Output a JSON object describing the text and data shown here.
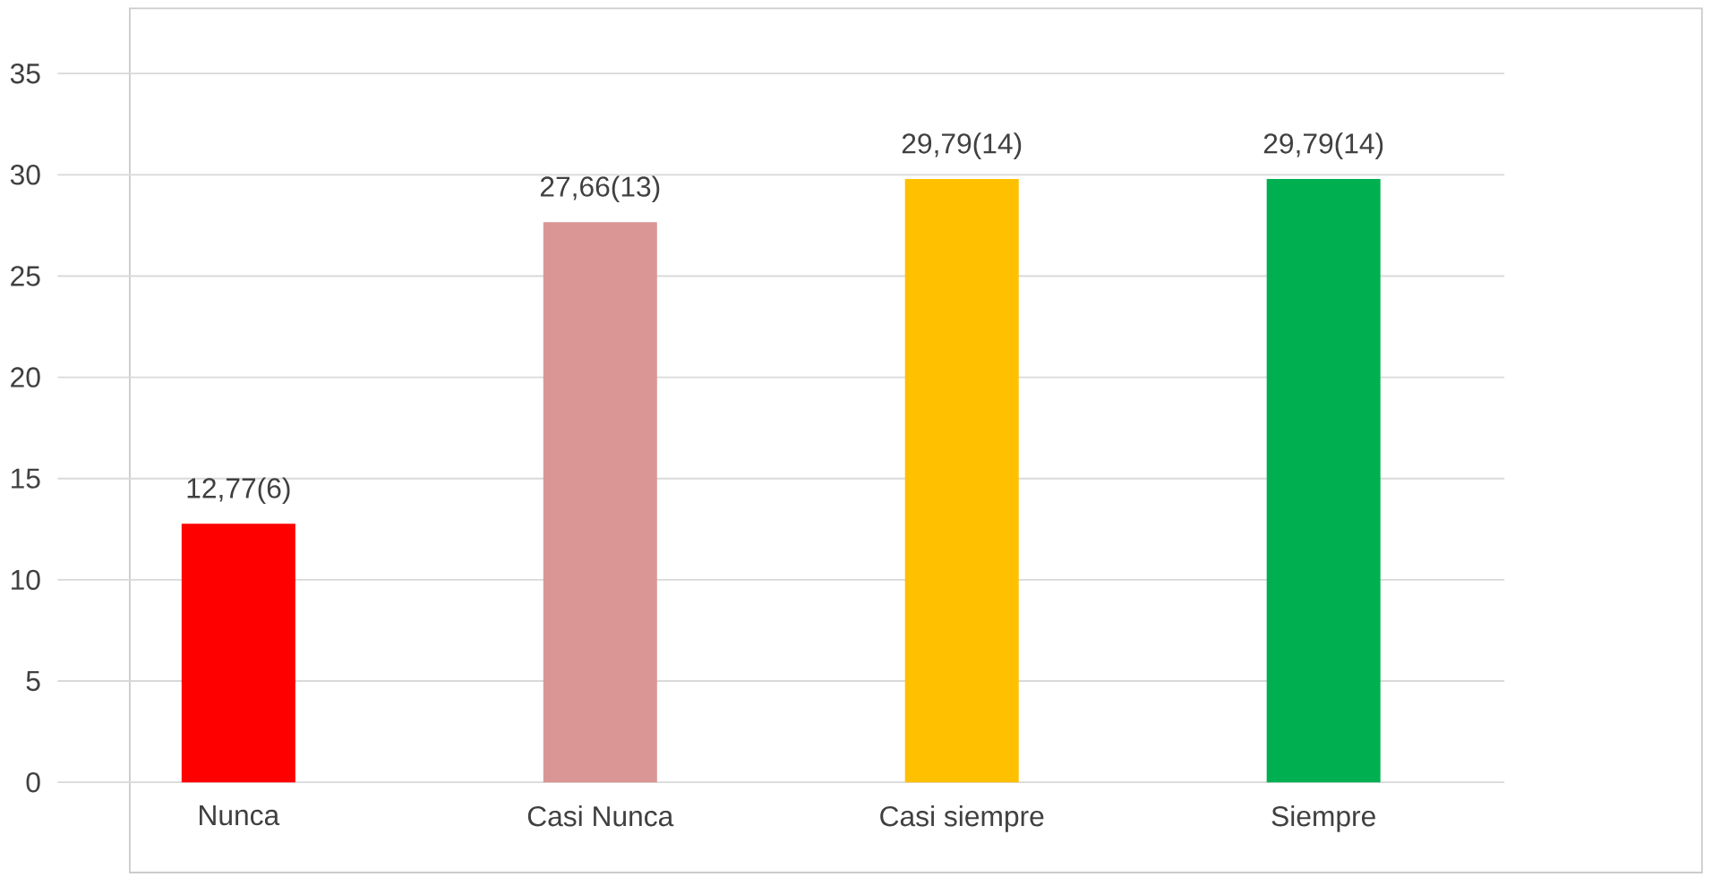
{
  "chart_data": {
    "type": "bar",
    "categories": [
      "Nunca",
      "Casi Nunca",
      "Casi siempre",
      "Siempre"
    ],
    "values": [
      12.77,
      27.66,
      29.79,
      29.79
    ],
    "colors": [
      "#ff0000",
      "#d99694",
      "#ffc000",
      "#00b050"
    ],
    "value_labels": [
      "12,77(6)",
      "27,66(13)",
      "29,79(14)",
      "29,79(14)"
    ],
    "ylim": [
      0,
      35
    ],
    "yticks": [
      0,
      5,
      10,
      15,
      20,
      25,
      30,
      35
    ],
    "grid": "y"
  }
}
